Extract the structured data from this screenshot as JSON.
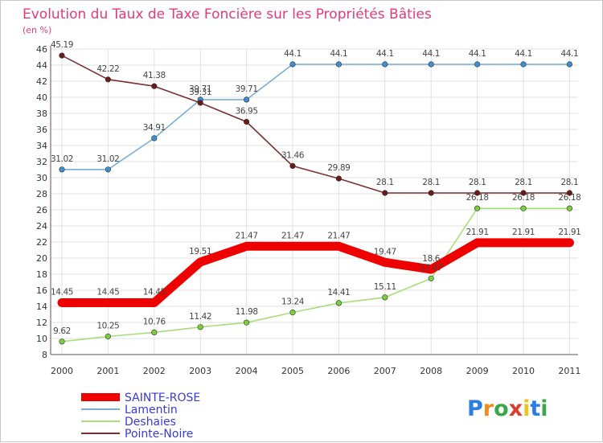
{
  "chart_data": {
    "type": "line",
    "title": "Evolution du Taux de Taxe Foncière sur les Propriétés Bâties",
    "subtitle": "(en %)",
    "xlabel": "",
    "ylabel": "",
    "categories": [
      "2000",
      "2001",
      "2002",
      "2003",
      "2004",
      "2005",
      "2006",
      "2007",
      "2008",
      "2009",
      "2010",
      "2011"
    ],
    "ylim": [
      8,
      46
    ],
    "yticks": [
      8,
      10,
      12,
      14,
      16,
      18,
      20,
      22,
      24,
      26,
      28,
      30,
      32,
      34,
      36,
      38,
      40,
      42,
      44,
      46
    ],
    "grid": true,
    "legend_position": "bottom-left",
    "series": [
      {
        "name": "SAINTE-ROSE",
        "color": "#ee0000",
        "marker_color": "#ee0000",
        "emphasis": true,
        "values": [
          14.45,
          14.45,
          14.45,
          19.51,
          21.47,
          21.47,
          21.47,
          19.47,
          18.6,
          21.91,
          21.91,
          21.91
        ],
        "labels": [
          "14.45",
          "14.45",
          "14.45",
          "19.51",
          "21.47",
          "21.47",
          "21.47",
          "19.47",
          "18.6",
          "21.91",
          "21.91",
          "21.91"
        ]
      },
      {
        "name": "Lamentin",
        "color": "#7aaed6",
        "marker_color": "#3d8fd1",
        "emphasis": false,
        "values": [
          31.02,
          31.02,
          34.91,
          39.71,
          39.71,
          44.1,
          44.1,
          44.1,
          44.1,
          44.1,
          44.1,
          44.1
        ],
        "labels": [
          "31.02",
          "31.02",
          "34.91",
          "39.71",
          "39.71",
          "44.1",
          "44.1",
          "44.1",
          "44.1",
          "44.1",
          "44.1",
          "44.1"
        ]
      },
      {
        "name": "Deshaies",
        "color": "#a8de7a",
        "marker_color": "#7ccf3c",
        "emphasis": false,
        "values": [
          9.62,
          10.25,
          10.76,
          11.42,
          11.98,
          13.24,
          14.41,
          15.11,
          17.47,
          26.18,
          26.18,
          26.18
        ],
        "labels": [
          "9.62",
          "10.25",
          "10.76",
          "11.42",
          "11.98",
          "13.24",
          "14.41",
          "15.11",
          "17.47",
          "26.18",
          "26.18",
          "26.18"
        ]
      },
      {
        "name": "Pointe-Noire",
        "color": "#7a3030",
        "marker_color": "#6b1a1a",
        "emphasis": false,
        "values": [
          45.19,
          42.22,
          41.38,
          39.31,
          36.95,
          31.46,
          29.89,
          28.1,
          28.1,
          28.1,
          28.1,
          28.1
        ],
        "labels": [
          "45.19",
          "42.22",
          "41.38",
          "39.31",
          "36.95",
          "31.46",
          "29.89",
          "28.1",
          "28.1",
          "28.1",
          "28.1",
          "28.1"
        ]
      }
    ]
  },
  "logo": {
    "letters": [
      "P",
      "r",
      "o",
      "x",
      "i",
      "t",
      "i"
    ],
    "colors": [
      "#2b7de0",
      "#f28a1e",
      "#3aa84a",
      "#d6402e",
      "#f2c21e",
      "#2b7de0",
      "#3aa84a"
    ]
  }
}
